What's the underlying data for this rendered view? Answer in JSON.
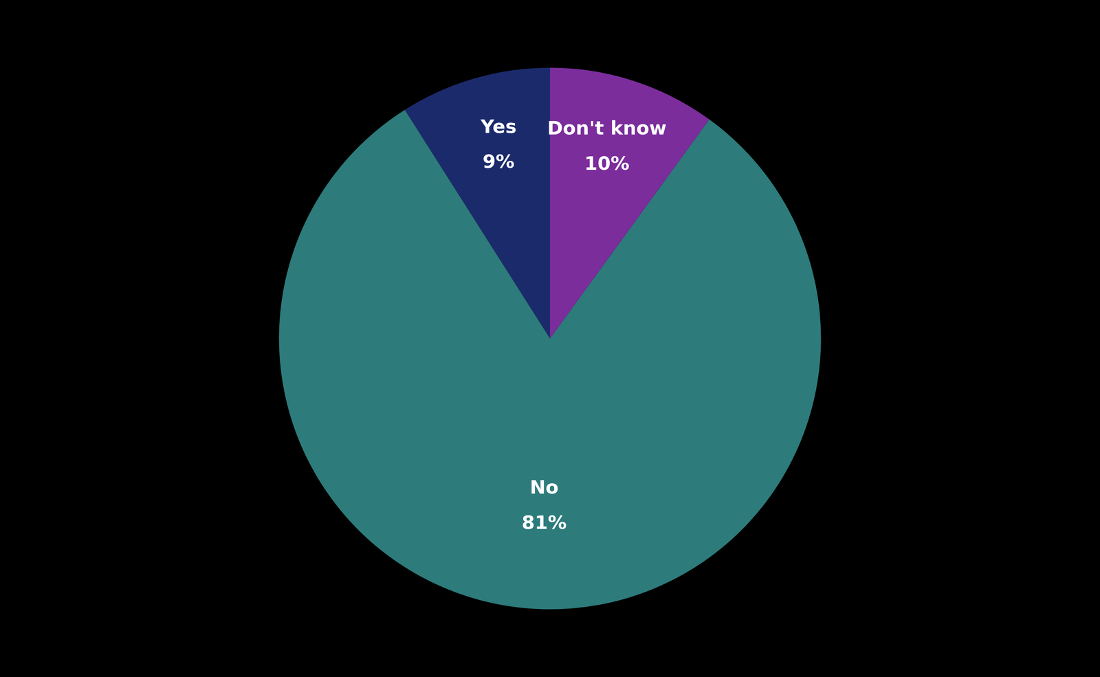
{
  "chart_data": {
    "type": "pie",
    "categories": [
      "Yes",
      "No",
      "Don't know"
    ],
    "values": [
      9,
      81,
      10
    ],
    "value_labels": [
      "9%",
      "81%",
      "10%"
    ],
    "colors": [
      "#1b2a6b",
      "#2d7b7b",
      "#7b2d9b"
    ],
    "data_labels": true
  }
}
